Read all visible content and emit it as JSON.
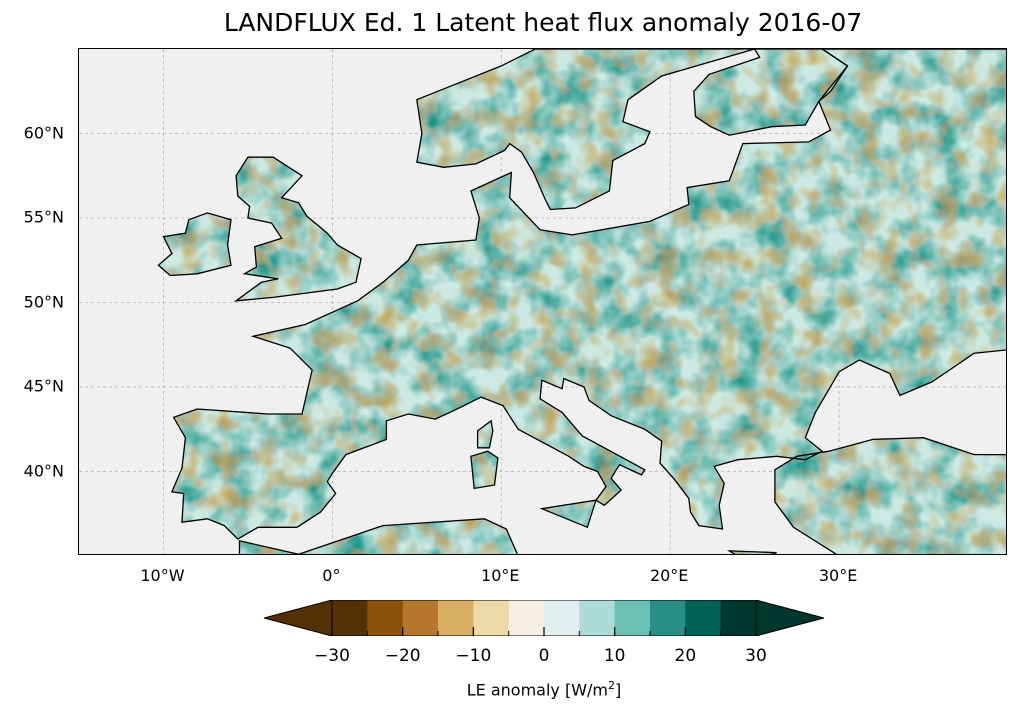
{
  "title": "LANDFLUX Ed. 1 Latent heat flux anomaly 2016-07",
  "map": {
    "projection": "PlateCarree",
    "lon_range": [
      -15,
      40
    ],
    "lat_range": [
      35,
      65
    ],
    "ocean_color": "#f0f0f0",
    "coastline_color": "#000000",
    "gridlines": true,
    "lat_ticks": [
      {
        "value": 60,
        "label": "60°N"
      },
      {
        "value": 55,
        "label": "55°N"
      },
      {
        "value": 50,
        "label": "50°N"
      },
      {
        "value": 45,
        "label": "45°N"
      },
      {
        "value": 40,
        "label": "40°N"
      }
    ],
    "lon_ticks": [
      {
        "value": -10,
        "label": "10°W"
      },
      {
        "value": 0,
        "label": "0°"
      },
      {
        "value": 10,
        "label": "10°E"
      },
      {
        "value": 20,
        "label": "20°E"
      },
      {
        "value": 30,
        "label": "30°E"
      }
    ]
  },
  "colorbar": {
    "label_text": "LE anomaly [W/m",
    "label_sup": "2",
    "label_end": "]",
    "range": [
      -30,
      30
    ],
    "extend": "both",
    "boundaries": [
      -30,
      -25,
      -20,
      -15,
      -10,
      -5,
      0,
      5,
      10,
      15,
      20,
      25,
      30
    ],
    "colors": [
      "#543005",
      "#8c510a",
      "#bf812d",
      "#dfc27d",
      "#f6e8c3",
      "#f5f5f5",
      "#c7eae5",
      "#80cdc1",
      "#35978f",
      "#01665e",
      "#003c30",
      "#003c30"
    ],
    "cmap_colors": [
      "#543005",
      "#8c510a",
      "#b5772b",
      "#d8ae62",
      "#edd9a8",
      "#f5efdf",
      "#e0efee",
      "#acdcd5",
      "#6cbfb3",
      "#2a8e86",
      "#006157",
      "#00372d"
    ],
    "ticks": [
      {
        "value": -30,
        "label": "−30"
      },
      {
        "value": -20,
        "label": "−20"
      },
      {
        "value": -10,
        "label": "−10"
      },
      {
        "value": 0,
        "label": "0"
      },
      {
        "value": 10,
        "label": "10"
      },
      {
        "value": 20,
        "label": "20"
      },
      {
        "value": 30,
        "label": "30"
      }
    ]
  }
}
